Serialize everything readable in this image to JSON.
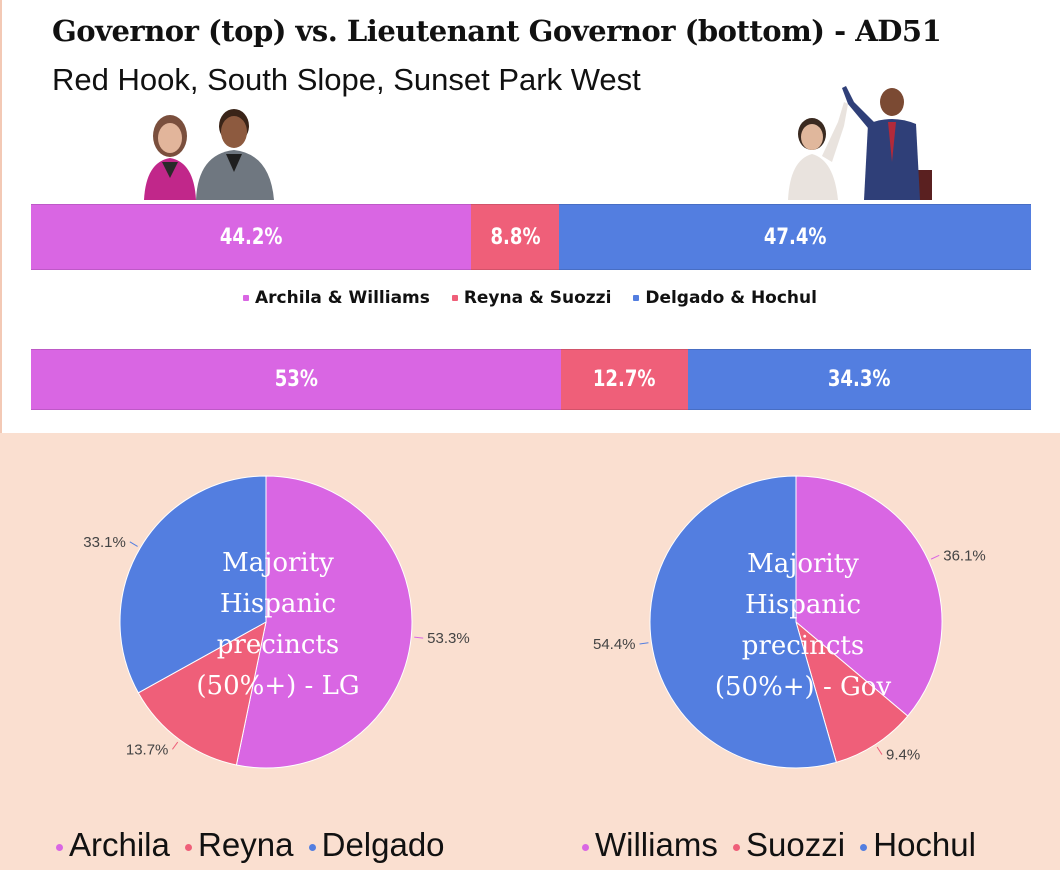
{
  "title": "Governor (top) vs. Lieutenant Governor (bottom) - AD51",
  "subtitle": "Red Hook, South Slope, Sunset Park West",
  "colors": {
    "archila_williams": "#d966e3",
    "reyna_suozzi": "#ef5f79",
    "delgado_hochul": "#537ee0"
  },
  "chart_data": [
    {
      "type": "bar",
      "orientation": "horizontal-stacked",
      "series": [
        {
          "name": "Archila & Williams",
          "value": 44.2,
          "label": "44.2%"
        },
        {
          "name": "Reyna & Suozzi",
          "value": 8.8,
          "label": "8.8%"
        },
        {
          "name": "Delgado & Hochul",
          "value": 47.4,
          "label": "47.4%"
        }
      ],
      "legend": [
        "Archila & Williams",
        "Reyna & Suozzi",
        "Delgado & Hochul"
      ]
    },
    {
      "type": "bar",
      "orientation": "horizontal-stacked",
      "series": [
        {
          "name": "Archila & Williams",
          "value": 53,
          "label": "53%"
        },
        {
          "name": "Reyna & Suozzi",
          "value": 12.7,
          "label": "12.7%"
        },
        {
          "name": "Delgado & Hochul",
          "value": 34.3,
          "label": "34.3%"
        }
      ]
    },
    {
      "type": "pie",
      "title": "Majority Hispanic precincts (50%+) - LG",
      "slices": [
        {
          "name": "Archila",
          "value": 53.3,
          "label": "53.3%"
        },
        {
          "name": "Reyna",
          "value": 13.7,
          "label": "13.7%"
        },
        {
          "name": "Delgado",
          "value": 33.1,
          "label": "33.1%"
        }
      ],
      "legend": [
        "Archila",
        "Reyna",
        "Delgado"
      ]
    },
    {
      "type": "pie",
      "title": "Majority Hispanic precincts (50%+) - Gov",
      "slices": [
        {
          "name": "Williams",
          "value": 36.1,
          "label": "36.1%"
        },
        {
          "name": "Suozzi",
          "value": 9.4,
          "label": "9.4%"
        },
        {
          "name": "Hochul",
          "value": 54.4,
          "label": "54.4%"
        }
      ],
      "legend": [
        "Williams",
        "Suozzi",
        "Hochul"
      ]
    }
  ]
}
